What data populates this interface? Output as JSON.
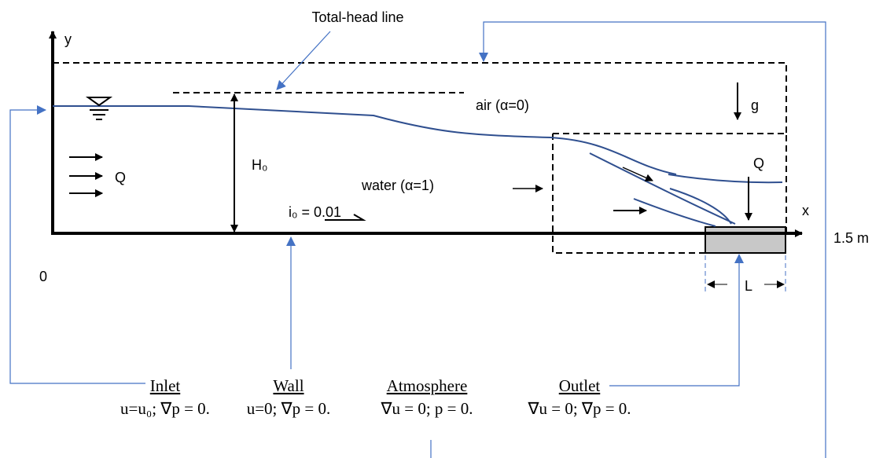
{
  "labels": {
    "total_head": "Total-head line",
    "y_axis": "y",
    "air": "air (α=0)",
    "gravity": "g",
    "q_inlet": "Q",
    "head": "H₀",
    "water": "water (α=1)",
    "q_outlet": "Q",
    "slope": "i₀ = 0.01",
    "x_axis": "x",
    "length": "1.5 m",
    "origin": "0",
    "outlet_length": "L"
  },
  "boundaries": [
    {
      "name": "Inlet",
      "condition": "u=u₀; ∇p = 0."
    },
    {
      "name": "Wall",
      "condition": "u=0; ∇p = 0."
    },
    {
      "name": "Atmosphere",
      "condition": "∇u = 0; p = 0."
    },
    {
      "name": "Outlet",
      "condition": "∇u = 0; ∇p = 0."
    }
  ]
}
